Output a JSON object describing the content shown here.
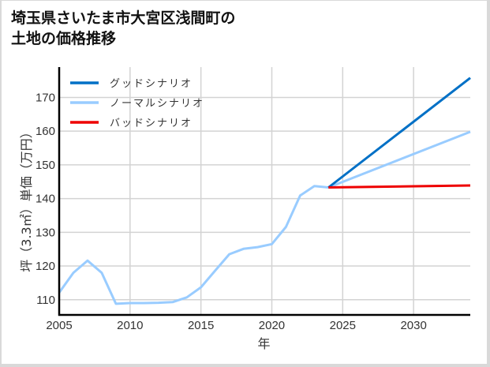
{
  "title": {
    "line1": "埼玉県さいたま市大宮区浅間町の",
    "line2": "土地の価格推移"
  },
  "colors": {
    "good": "#0070c6",
    "normal": "#99ccff",
    "bad": "#ee0000",
    "grid": "#d3d3d3",
    "axis": "#000000",
    "frame": "#d9d9d9"
  },
  "chart_data": {
    "type": "line",
    "title": "埼玉県さいたま市大宮区浅間町の土地の価格推移",
    "xlabel": "年",
    "ylabel": "坪（3.3㎡）単価（万円）",
    "xlim": [
      2005,
      2034
    ],
    "ylim": [
      105.5,
      179
    ],
    "xticks": [
      2005,
      2010,
      2015,
      2020,
      2025,
      2030
    ],
    "yticks": [
      110,
      120,
      130,
      140,
      150,
      160,
      170
    ],
    "grid": true,
    "legend_position": "upper left",
    "series": [
      {
        "name": "グッドシナリオ",
        "color": "#0070c6",
        "x": [
          2024,
          2034
        ],
        "values": [
          143.3,
          175.8
        ]
      },
      {
        "name": "ノーマルシナリオ",
        "color": "#99ccff",
        "x": [
          2005,
          2006,
          2007,
          2008,
          2009,
          2010,
          2011,
          2012,
          2013,
          2014,
          2015,
          2016,
          2017,
          2018,
          2019,
          2020,
          2021,
          2022,
          2023,
          2024,
          2034
        ],
        "values": [
          112.1,
          118.0,
          121.6,
          118.0,
          108.8,
          109.0,
          109.0,
          109.1,
          109.3,
          110.7,
          113.7,
          118.6,
          123.5,
          125.1,
          125.6,
          126.5,
          131.6,
          140.9,
          143.7,
          143.3,
          159.8
        ]
      },
      {
        "name": "バッドシナリオ",
        "color": "#ee0000",
        "x": [
          2024,
          2034
        ],
        "values": [
          143.3,
          143.9
        ]
      }
    ]
  }
}
